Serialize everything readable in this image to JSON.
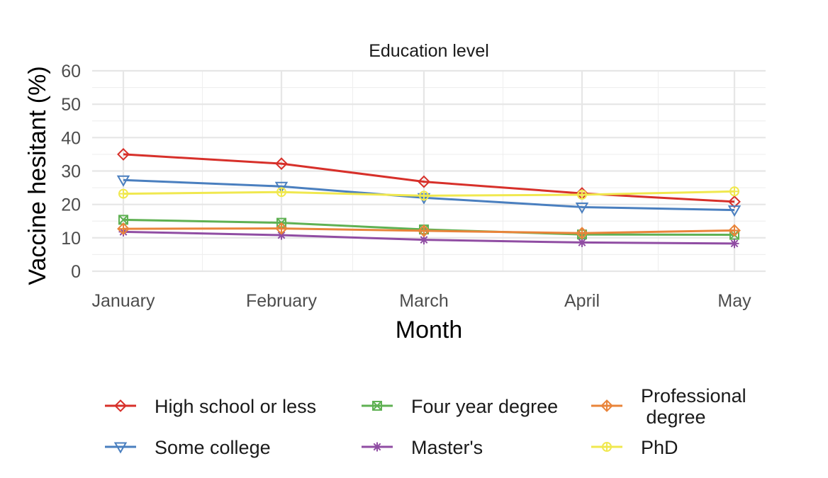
{
  "chart_data": {
    "type": "line",
    "title": "Education level",
    "xlabel": "Month",
    "ylabel": "Vaccine hesitant (%)",
    "categories": [
      "January",
      "February",
      "March",
      "April",
      "May"
    ],
    "ylim": [
      0,
      60
    ],
    "yticks": [
      0,
      10,
      20,
      30,
      40,
      50,
      60
    ],
    "grid": true,
    "legend_position": "bottom",
    "series": [
      {
        "name": "High school or less",
        "color": "#d7302a",
        "marker": "diamond",
        "values": [
          35.0,
          32.2,
          26.8,
          23.3,
          20.8
        ]
      },
      {
        "name": "Some college",
        "color": "#4a7fbf",
        "marker": "triangle-down",
        "values": [
          27.3,
          25.4,
          22.0,
          19.2,
          18.3
        ]
      },
      {
        "name": "Four year degree",
        "color": "#5fb153",
        "marker": "square-cross",
        "values": [
          15.4,
          14.5,
          12.5,
          11.0,
          10.9
        ]
      },
      {
        "name": "Master's",
        "color": "#904da3",
        "marker": "asterisk",
        "values": [
          11.8,
          10.8,
          9.4,
          8.6,
          8.3
        ]
      },
      {
        "name": "Professional\n degree",
        "color": "#e9843a",
        "marker": "diamond-plus",
        "values": [
          12.7,
          12.8,
          12.1,
          11.4,
          12.2
        ]
      },
      {
        "name": "PhD",
        "color": "#f0e84f",
        "marker": "circle-plus",
        "values": [
          23.2,
          23.7,
          22.6,
          22.9,
          23.9
        ]
      }
    ]
  }
}
